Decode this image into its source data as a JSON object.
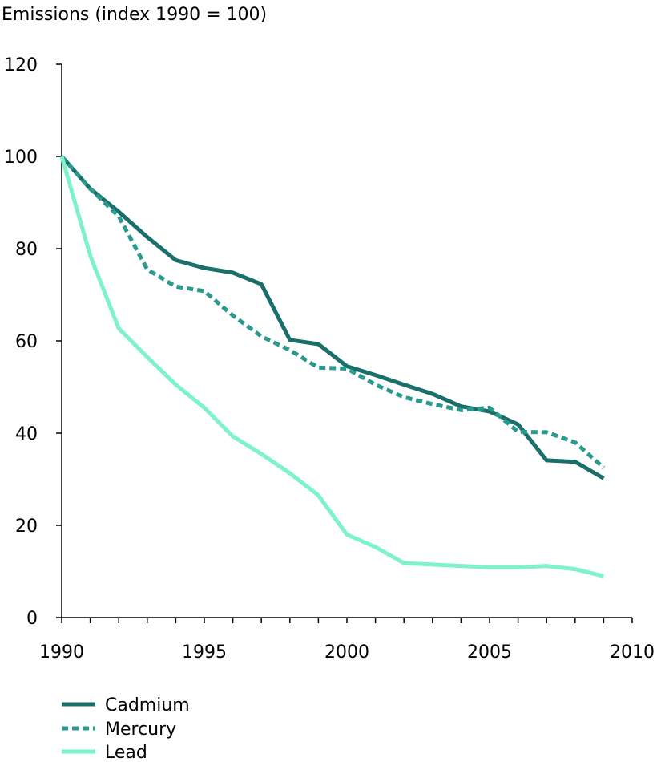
{
  "chart_data": {
    "type": "line",
    "title": "",
    "xlabel": "",
    "ylabel": "Emissions (index 1990 = 100)",
    "xlim": [
      1990,
      2010
    ],
    "ylim": [
      0,
      120
    ],
    "x_ticks": [
      "1990",
      "1995",
      "2000",
      "2005",
      "2010"
    ],
    "y_ticks": [
      "0",
      "20",
      "40",
      "60",
      "80",
      "100",
      "120"
    ],
    "grid": false,
    "legend_position": "bottom-left",
    "x": [
      1990,
      1991,
      1992,
      1993,
      1994,
      1995,
      1996,
      1997,
      1998,
      1999,
      2000,
      2001,
      2002,
      2003,
      2004,
      2005,
      2006,
      2007,
      2008,
      2009
    ],
    "series": [
      {
        "name": "Cadmium",
        "color": "#1a6f6a",
        "style": "solid",
        "values": [
          100,
          93,
          88,
          82.5,
          77.5,
          75.8,
          74.8,
          72.3,
          60.2,
          59.3,
          54.5,
          52.6,
          50.5,
          48.5,
          45.8,
          44.7,
          41.9,
          34.1,
          33.8,
          30.2
        ]
      },
      {
        "name": "Mercury",
        "color": "#2a9a8f",
        "style": "dashed",
        "values": [
          100,
          93,
          87,
          75.5,
          71.8,
          70.8,
          65.5,
          61,
          58,
          54.2,
          54,
          50.5,
          47.8,
          46.3,
          45,
          45.5,
          40.3,
          40.2,
          38,
          32.5
        ]
      },
      {
        "name": "Lead",
        "color": "#7ef2c8",
        "style": "solid",
        "values": [
          100,
          78.5,
          62.7,
          56.5,
          50.5,
          45.5,
          39.3,
          35.5,
          31.3,
          26.5,
          18,
          15.3,
          11.8,
          11.5,
          11.2,
          10.9,
          10.9,
          11.2,
          10.5,
          9
        ]
      }
    ]
  }
}
